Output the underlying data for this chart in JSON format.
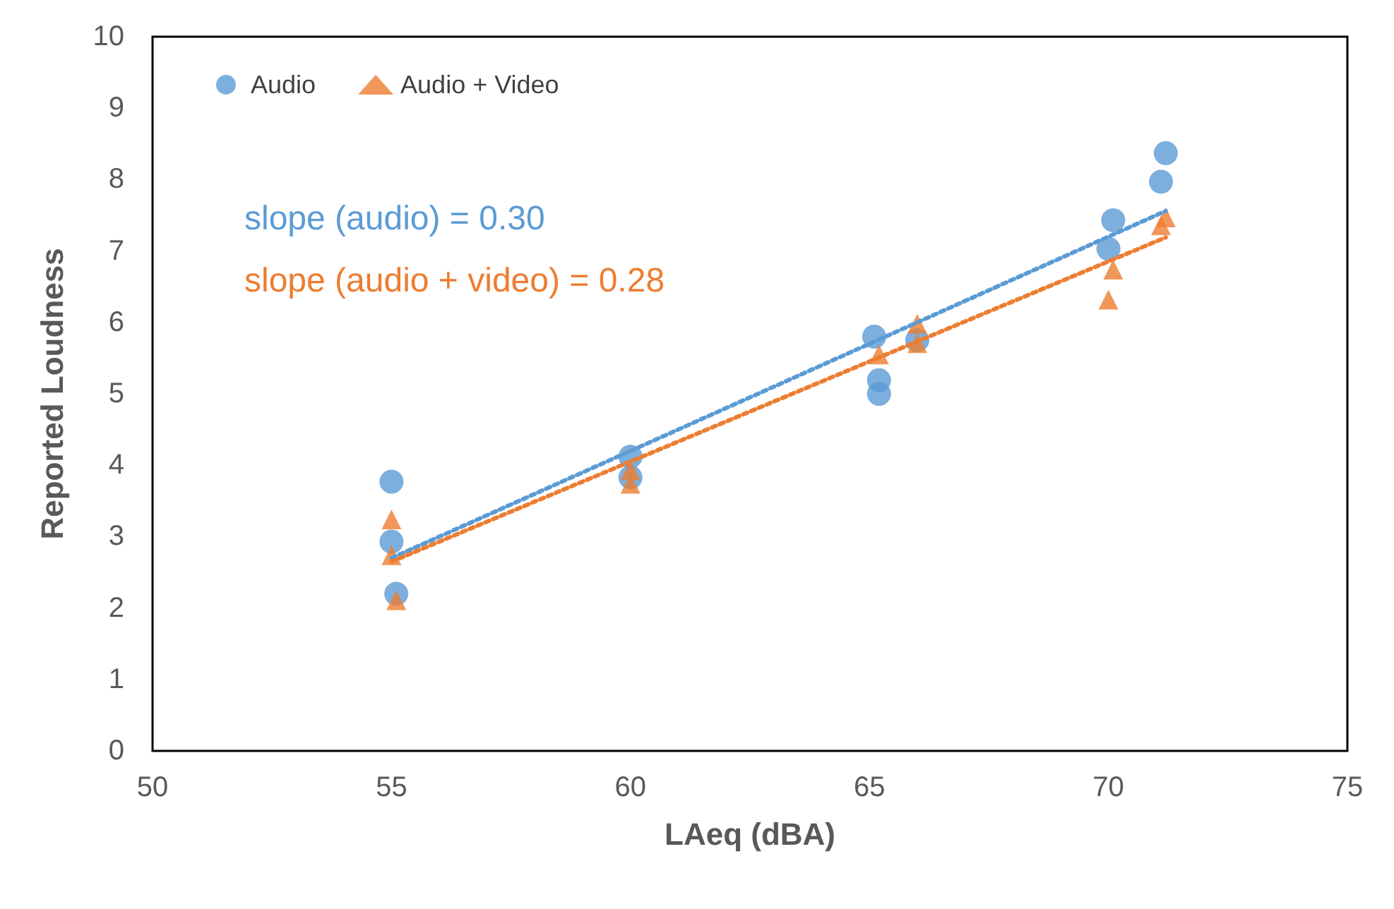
{
  "chart_data": {
    "type": "scatter",
    "xlabel": "LAeq (dBA)",
    "ylabel": "Reported Loudness",
    "xlim": [
      50,
      75
    ],
    "xticks": [
      50,
      55,
      60,
      65,
      70,
      75
    ],
    "ylim": [
      0,
      10
    ],
    "yticks": [
      0,
      1,
      2,
      3,
      4,
      5,
      6,
      7,
      8,
      9,
      10
    ],
    "grid": false,
    "legend": "top left",
    "annotations": [
      "slope (audio) = 0.30",
      "slope (audio + video) = 0.28"
    ],
    "series": [
      {
        "name": "Audio",
        "color": "#5b9bd5",
        "marker": "circle",
        "x": [
          55.0,
          55.0,
          55.1,
          60.0,
          60.0,
          65.1,
          65.2,
          65.2,
          66.0,
          70.1,
          70.0,
          71.1,
          71.2
        ],
        "values": [
          3.77,
          2.93,
          2.2,
          4.12,
          3.83,
          5.8,
          5.19,
          5.0,
          5.75,
          7.43,
          7.03,
          7.97,
          8.37
        ]
      },
      {
        "name": "Audio + Video",
        "color": "#ed7d31",
        "marker": "triangle",
        "x": [
          55.0,
          55.0,
          55.1,
          60.0,
          60.0,
          65.2,
          66.0,
          66.0,
          70.1,
          70.0,
          71.1,
          71.2
        ],
        "values": [
          3.24,
          2.74,
          2.11,
          3.93,
          3.74,
          5.55,
          5.98,
          5.71,
          6.74,
          6.32,
          7.36,
          7.47
        ]
      },
      {
        "type": "line",
        "color": "#5b9bd5",
        "line_style": "dotted",
        "marker": "none",
        "x": [
          55.0,
          71.2
        ],
        "values": [
          2.7,
          7.56
        ]
      },
      {
        "type": "line",
        "color": "#ed7d31",
        "line_style": "dotted",
        "marker": "none",
        "x": [
          55.0,
          71.2
        ],
        "values": [
          2.65,
          7.19
        ]
      }
    ]
  }
}
